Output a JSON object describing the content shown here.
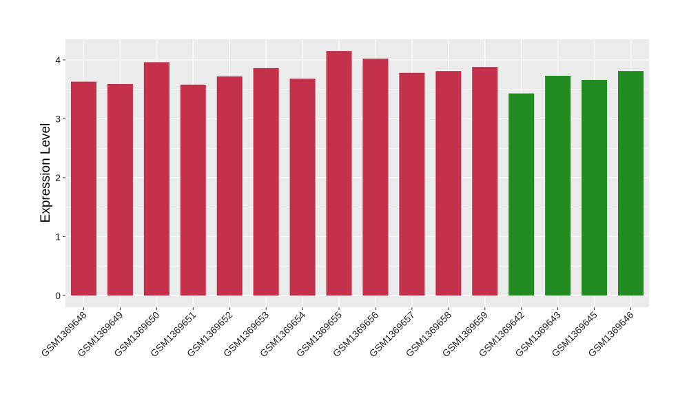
{
  "chart_data": {
    "type": "bar",
    "title": "",
    "xlabel": "",
    "ylabel": "Expression Level",
    "ylim": [
      -0.2,
      4.35
    ],
    "yticks": [
      0,
      1,
      2,
      3,
      4
    ],
    "grid": true,
    "categories": [
      "GSM1369648",
      "GSM1369649",
      "GSM1369650",
      "GSM1369651",
      "GSM1369652",
      "GSM1369653",
      "GSM1369654",
      "GSM1369655",
      "GSM1369656",
      "GSM1369657",
      "GSM1369658",
      "GSM1369659",
      "GSM1369642",
      "GSM1369643",
      "GSM1369645",
      "GSM1369646"
    ],
    "values": [
      3.63,
      3.59,
      3.96,
      3.58,
      3.72,
      3.86,
      3.68,
      4.15,
      4.02,
      3.78,
      3.81,
      3.88,
      3.43,
      3.73,
      3.66,
      3.81
    ],
    "groups": [
      "a",
      "a",
      "a",
      "a",
      "a",
      "a",
      "a",
      "a",
      "a",
      "a",
      "a",
      "a",
      "b",
      "b",
      "b",
      "b"
    ],
    "colors": {
      "a": "#C4314B",
      "b": "#228B22"
    }
  }
}
